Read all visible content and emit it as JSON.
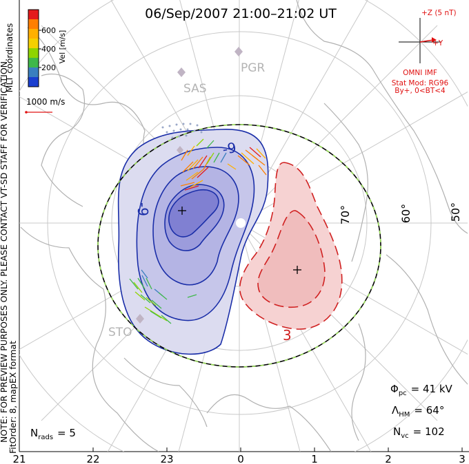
{
  "title": "06/Sep/2007  21:00–21:02  UT",
  "colorbar": {
    "label": "Vel [m/s]",
    "ticks": [
      "600",
      "400",
      "200"
    ],
    "colors": [
      "#e41a1c",
      "#ff7f00",
      "#ffb000",
      "#f5d000",
      "#8fd400",
      "#3fb84a",
      "#3a7fbf",
      "#1a3fd0"
    ]
  },
  "velocity_scale": "1000 m/s",
  "mlt_label": "MLT coordinates",
  "preview_note": "NOTE: FOR PREVIEW PURPOSES ONLY.  PLEASE CONTACT VT-SD STAFF FOR VERIFICATION.",
  "fit_note": "FitOrder: 8,  mapEX format",
  "imf": {
    "z_label": "+Z (5 nT)",
    "y_label": "+Y",
    "source": "OMNI IMF",
    "stat_mod": "Stat Mod: RG96",
    "condition": "By+, 0<BT<4"
  },
  "stations": [
    "PGR",
    "SAS",
    "STO"
  ],
  "latitudes": [
    "70°",
    "60°",
    "50°"
  ],
  "contours": {
    "negative_label": "-9",
    "negative_label_2": "-9",
    "positive_label": "3"
  },
  "stats": {
    "phi_pc": "Φ",
    "phi_pc_sub": "pc",
    "phi_pc_value": "= 41 kV",
    "lambda_hm": "Λ",
    "lambda_hm_sub": "HM",
    "lambda_hm_value": "= 64°",
    "n_vc": "N",
    "n_vc_sub": "vc",
    "n_vc_value": "= 102",
    "n_rads": "N",
    "n_rads_sub": "rads",
    "n_rads_value": "= 5"
  },
  "mlt_ticks": [
    "21",
    "22",
    "23",
    "0",
    "1",
    "2",
    "3"
  ],
  "colors": {
    "negative_fill": "#d6d6f0",
    "negative_line": "#1a2ea8",
    "positive_fill": "#f6d2d2",
    "positive_line": "#d02020",
    "boundary": "#000000",
    "boundary_dash": "#9be05a"
  }
}
